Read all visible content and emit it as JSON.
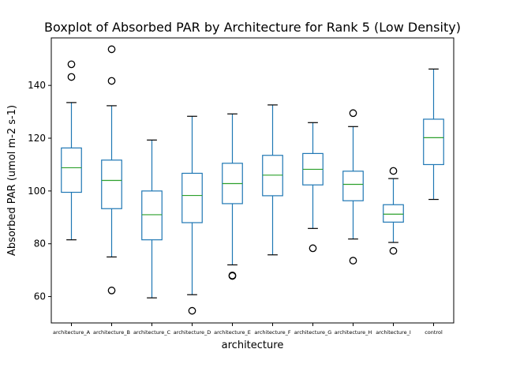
{
  "chart_data": {
    "type": "box",
    "title": "Boxplot of Absorbed PAR by Architecture for Rank 5 (Low Density)",
    "xlabel": "architecture",
    "ylabel": "Absorbed PAR (umol m-2 s-1)",
    "ylim": [
      50,
      158
    ],
    "yticks": [
      60,
      80,
      100,
      120,
      140
    ],
    "grid": false,
    "colors": {
      "box": "#1f77b4",
      "median": "#2ca02c",
      "whisker": "#000000",
      "flier": "#000000"
    },
    "categories": [
      "architecture_A",
      "architecture_B",
      "architecture_C",
      "architecture_D",
      "architecture_E",
      "architecture_F",
      "architecture_G",
      "architecture_H",
      "architecture_I",
      "control"
    ],
    "boxes": [
      {
        "whislo": 81.5,
        "q1": 99.5,
        "med": 108.8,
        "q3": 116.3,
        "whishi": 133.5,
        "fliers": [
          143.2,
          148.0
        ]
      },
      {
        "whislo": 75.0,
        "q1": 93.3,
        "med": 104.0,
        "q3": 111.7,
        "whishi": 132.3,
        "fliers": [
          62.3,
          141.7,
          153.7
        ]
      },
      {
        "whislo": 59.5,
        "q1": 81.5,
        "med": 91.0,
        "q3": 100.0,
        "whishi": 119.3,
        "fliers": []
      },
      {
        "whislo": 60.7,
        "q1": 88.0,
        "med": 98.3,
        "q3": 106.7,
        "whishi": 128.3,
        "fliers": [
          54.6
        ]
      },
      {
        "whislo": 72.0,
        "q1": 95.2,
        "med": 102.8,
        "q3": 110.5,
        "whishi": 129.2,
        "fliers": [
          67.8,
          68.0
        ]
      },
      {
        "whislo": 75.8,
        "q1": 98.2,
        "med": 106.0,
        "q3": 113.5,
        "whishi": 132.6,
        "fliers": []
      },
      {
        "whislo": 85.8,
        "q1": 102.3,
        "med": 108.2,
        "q3": 114.2,
        "whishi": 125.9,
        "fliers": [
          78.3
        ]
      },
      {
        "whislo": 81.8,
        "q1": 96.3,
        "med": 102.5,
        "q3": 107.5,
        "whishi": 124.4,
        "fliers": [
          73.6,
          129.5
        ]
      },
      {
        "whislo": 80.5,
        "q1": 88.2,
        "med": 91.2,
        "q3": 94.8,
        "whishi": 104.7,
        "fliers": [
          77.3,
          107.6
        ]
      },
      {
        "whislo": 96.8,
        "q1": 110.0,
        "med": 120.2,
        "q3": 127.2,
        "whishi": 146.2,
        "fliers": []
      }
    ]
  }
}
